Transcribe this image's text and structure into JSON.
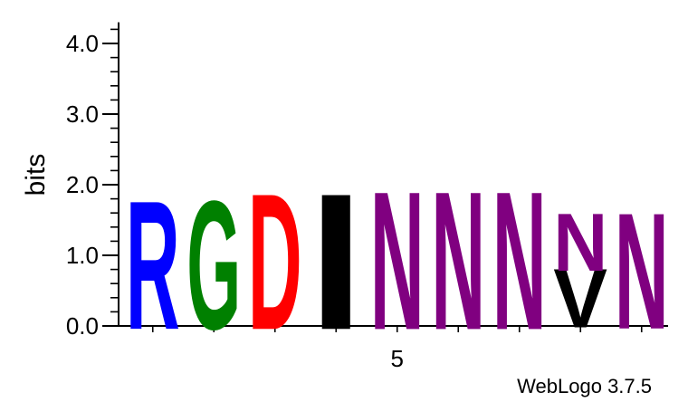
{
  "chart_data": {
    "type": "sequence-logo",
    "ylabel": "bits",
    "ylim": [
      0,
      4.3
    ],
    "y_major_ticks": [
      0,
      1,
      2,
      3,
      4
    ],
    "y_tick_labels": [
      "0.0",
      "1.0",
      "2.0",
      "3.0",
      "4.0"
    ],
    "y_minor_step": 0.2,
    "positions": [
      1,
      2,
      3,
      4,
      5,
      6,
      7,
      8,
      9
    ],
    "x_tick_labels": [
      {
        "position": 5,
        "label": "5"
      }
    ],
    "columns": [
      {
        "position": 1,
        "letters": [
          {
            "letter": "R",
            "bits": 1.75,
            "color": "#0000ff"
          }
        ]
      },
      {
        "position": 2,
        "letters": [
          {
            "letter": "G",
            "bits": 1.75,
            "color": "#008000"
          }
        ]
      },
      {
        "position": 3,
        "letters": [
          {
            "letter": "D",
            "bits": 1.85,
            "color": "#ff0000"
          }
        ]
      },
      {
        "position": 4,
        "letters": [
          {
            "letter": "I",
            "bits": 1.85,
            "color": "#000000"
          }
        ]
      },
      {
        "position": 5,
        "letters": [
          {
            "letter": "N",
            "bits": 1.88,
            "color": "#800080"
          }
        ]
      },
      {
        "position": 6,
        "letters": [
          {
            "letter": "N",
            "bits": 1.88,
            "color": "#800080"
          }
        ]
      },
      {
        "position": 7,
        "letters": [
          {
            "letter": "N",
            "bits": 1.88,
            "color": "#800080"
          }
        ]
      },
      {
        "position": 8,
        "letters": [
          {
            "letter": "V",
            "bits": 0.8,
            "color": "#000000"
          },
          {
            "letter": "N",
            "bits": 0.78,
            "color": "#800080"
          }
        ]
      },
      {
        "position": 9,
        "letters": [
          {
            "letter": "N",
            "bits": 1.58,
            "color": "#800080"
          }
        ]
      }
    ]
  },
  "footer": {
    "credit": "WebLogo 3.7.5"
  }
}
